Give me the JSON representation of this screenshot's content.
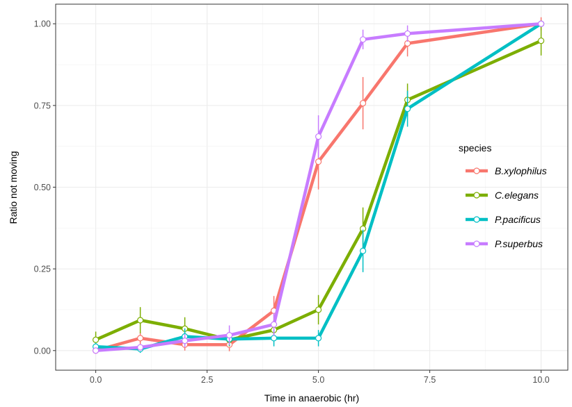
{
  "chart_data": {
    "type": "line",
    "xlabel": "Time in anaerobic (hr)",
    "ylabel": "Ratio not moving",
    "xlim": [
      -0.9,
      10.6
    ],
    "ylim": [
      -0.06,
      1.06
    ],
    "xticks": [
      0,
      2.5,
      5,
      7.5,
      10
    ],
    "xtick_labels": [
      "0.0",
      "2.5",
      "5.0",
      "7.5",
      "10.0"
    ],
    "yticks": [
      0,
      0.25,
      0.5,
      0.75,
      1.0
    ],
    "ytick_labels": [
      "0.00",
      "0.25",
      "0.50",
      "0.75",
      "1.00"
    ],
    "grid": true,
    "legend": {
      "title": "species",
      "position": "right"
    },
    "series": [
      {
        "name": "B.xylophilus",
        "color": "#F8766D",
        "x": [
          0,
          1,
          2,
          3,
          4,
          5,
          6,
          7,
          10
        ],
        "y": [
          0.0,
          0.038,
          0.018,
          0.018,
          0.122,
          0.578,
          0.757,
          0.94,
          1.0
        ],
        "err": [
          0.0,
          0.018,
          0.018,
          0.02,
          0.045,
          0.085,
          0.08,
          0.04,
          0.02
        ]
      },
      {
        "name": "C.elegans",
        "color": "#7CAE00",
        "x": [
          0,
          1,
          2,
          3,
          4,
          5,
          6,
          7,
          10
        ],
        "y": [
          0.033,
          0.093,
          0.067,
          0.033,
          0.063,
          0.125,
          0.373,
          0.767,
          0.948
        ],
        "err": [
          0.025,
          0.04,
          0.035,
          0.02,
          0.02,
          0.045,
          0.065,
          0.05,
          0.045
        ]
      },
      {
        "name": "P.pacificus",
        "color": "#00BFC4",
        "x": [
          0,
          1,
          2,
          3,
          4,
          5,
          6,
          7,
          10
        ],
        "y": [
          0.012,
          0.005,
          0.043,
          0.035,
          0.038,
          0.038,
          0.305,
          0.74,
          1.0
        ],
        "err": [
          0.012,
          0.012,
          0.025,
          0.02,
          0.025,
          0.025,
          0.065,
          0.055,
          0.0
        ]
      },
      {
        "name": "P.superbus",
        "color": "#C77CFF",
        "x": [
          0,
          1,
          2,
          3,
          4,
          5,
          6,
          7,
          10
        ],
        "y": [
          0.0,
          0.01,
          0.03,
          0.047,
          0.08,
          0.655,
          0.952,
          0.97,
          1.0
        ],
        "err": [
          0.0,
          0.01,
          0.02,
          0.03,
          0.035,
          0.065,
          0.03,
          0.025,
          0.0
        ]
      }
    ]
  }
}
